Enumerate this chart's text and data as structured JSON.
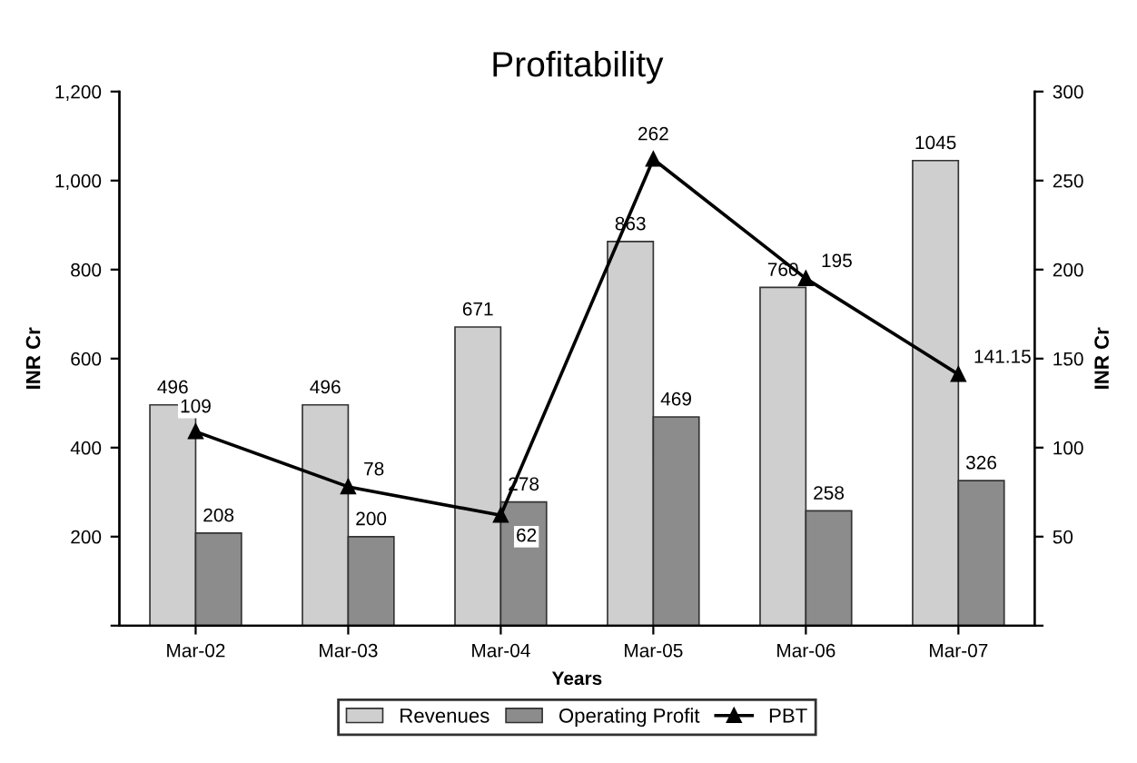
{
  "chart_data": {
    "type": "bar",
    "title": "Profitability",
    "xlabel": "Years",
    "ylabel": "INR Cr",
    "y2label": "INR Cr",
    "categories": [
      "Mar-02",
      "Mar-03",
      "Mar-04",
      "Mar-05",
      "Mar-06",
      "Mar-07"
    ],
    "series": [
      {
        "name": "Revenues",
        "color": "#cfcfcf",
        "values": [
          496,
          496,
          671,
          863,
          760,
          1045
        ]
      },
      {
        "name": "Operating Profit",
        "color": "#8c8c8c",
        "values": [
          208,
          200,
          278,
          469,
          258,
          326
        ]
      },
      {
        "name": "PBT",
        "color": "#000000",
        "type": "line",
        "axis": "y2",
        "marker": "triangle",
        "values": [
          109,
          78,
          62,
          262,
          195,
          141.15
        ]
      }
    ],
    "ylim": [
      0,
      1200
    ],
    "yticks": [
      {
        "value": 0,
        "label": null
      },
      200,
      400,
      600,
      800,
      {
        "value": 1000,
        "label": "1,000"
      },
      {
        "value": 1200,
        "label": "1,200"
      }
    ],
    "y2lim": [
      0,
      300
    ],
    "y2ticks": [
      {
        "value": 0,
        "label": null
      },
      50,
      100,
      150,
      200,
      250,
      300
    ],
    "data_labels": true,
    "legend": "bottom",
    "grid": false
  }
}
